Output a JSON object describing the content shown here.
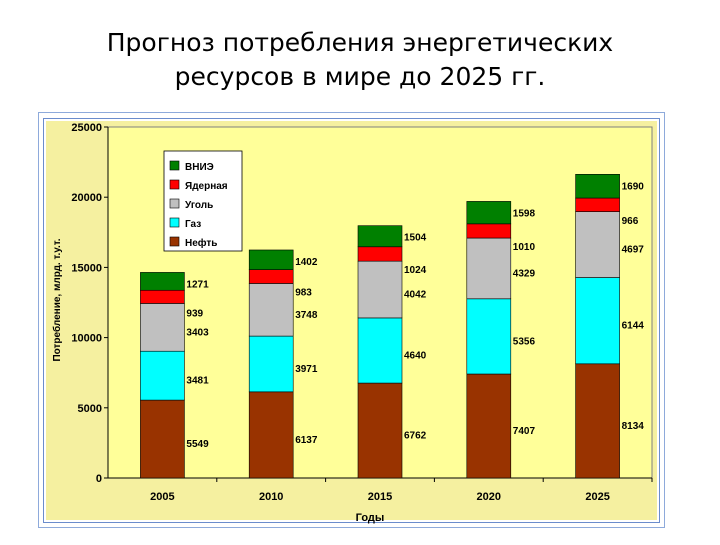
{
  "title_line1": "Прогноз потребления энергетических",
  "title_line2": "ресурсов в мире  до 2025 гг.",
  "chart_data": {
    "type": "bar",
    "stacked": true,
    "title": "",
    "xlabel": "Годы",
    "ylabel": "Потребление, млрд. т.у.т.",
    "ylim": [
      0,
      25000
    ],
    "yticks": [
      "0",
      "5000",
      "10000",
      "15000",
      "20000",
      "25000"
    ],
    "categories": [
      "2005",
      "2010",
      "2015",
      "2020",
      "2025"
    ],
    "series": [
      {
        "name": "Нефть",
        "color": "#993300",
        "values": [
          5549,
          6137,
          6762,
          7407,
          8134
        ]
      },
      {
        "name": "Газ",
        "color": "#00ffff",
        "values": [
          3481,
          3971,
          4640,
          5356,
          6144
        ]
      },
      {
        "name": "Уголь",
        "color": "#c0c0c0",
        "values": [
          3403,
          3748,
          4042,
          4329,
          4697
        ]
      },
      {
        "name": "Ядерная",
        "color": "#ff0000",
        "values": [
          939,
          983,
          1024,
          1010,
          966
        ]
      },
      {
        "name": "ВНИЭ",
        "color": "#008000",
        "values": [
          1271,
          1402,
          1504,
          1598,
          1690
        ]
      }
    ],
    "legend_order": [
      "ВНИЭ",
      "Ядерная",
      "Уголь",
      "Газ",
      "Нефть"
    ],
    "legend_position": "top-left",
    "grid": false,
    "plot_background": "#ffff99",
    "chart_background": "#f5f0a0"
  }
}
